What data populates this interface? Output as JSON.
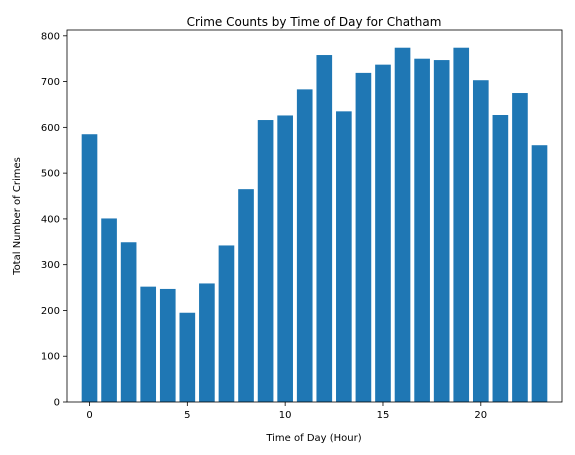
{
  "chart_data": {
    "type": "bar",
    "title": "Crime Counts by Time of Day for Chatham",
    "xlabel": "Time of Day (Hour)",
    "ylabel": "Total Number of Crimes",
    "x": [
      0,
      1,
      2,
      3,
      4,
      5,
      6,
      7,
      8,
      9,
      10,
      11,
      12,
      13,
      14,
      15,
      16,
      17,
      18,
      19,
      20,
      21,
      22,
      23
    ],
    "values": [
      585,
      401,
      349,
      252,
      247,
      195,
      259,
      342,
      465,
      616,
      626,
      683,
      758,
      635,
      719,
      737,
      774,
      750,
      747,
      774,
      703,
      627,
      675,
      561
    ],
    "xlim": [
      -1.15,
      24.15
    ],
    "ylim": [
      0,
      812.7
    ],
    "xticks": [
      0,
      5,
      10,
      15,
      20
    ],
    "yticks": [
      0,
      100,
      200,
      300,
      400,
      500,
      600,
      700,
      800
    ],
    "bar_color": "#1f77b4",
    "grid": false,
    "legend": false
  }
}
